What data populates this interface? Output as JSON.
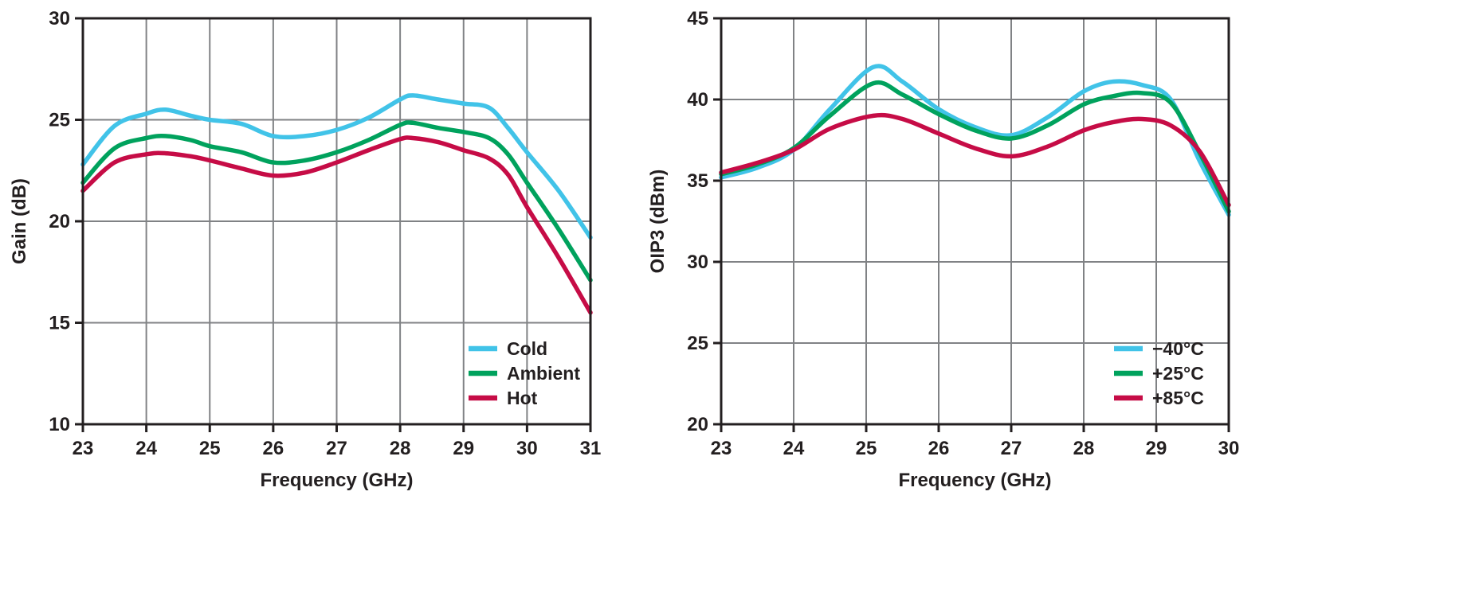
{
  "figure": {
    "background": "#FFFFFF"
  },
  "style_colors": {
    "axis_text": "#231F20",
    "frame": "#231F20",
    "grid": "#808285",
    "highlight_blue": "#0067B9"
  },
  "chart_data": [
    {
      "type": "line",
      "title": "",
      "xlabel": "Frequency (GHz)",
      "ylabel": "Gain (dB)",
      "xlim": [
        23,
        31
      ],
      "ylim": [
        10,
        30
      ],
      "xticks": [
        23,
        24,
        25,
        26,
        27,
        28,
        29,
        30,
        31
      ],
      "yticks": [
        10,
        15,
        20,
        25,
        30
      ],
      "grid": true,
      "legend_position": "bottom-right-inside",
      "x": [
        23,
        23.5,
        24,
        24.3,
        24.7,
        25,
        25.5,
        26,
        26.5,
        27,
        27.5,
        28,
        28.2,
        28.6,
        29,
        29.4,
        29.7,
        30,
        30.5,
        31
      ],
      "series": [
        {
          "name": "Cold",
          "color": "#41C3E8",
          "values": [
            22.8,
            24.7,
            25.3,
            25.5,
            25.2,
            25.0,
            24.8,
            24.2,
            24.2,
            24.5,
            25.1,
            26.0,
            26.2,
            26.0,
            25.8,
            25.6,
            24.6,
            23.4,
            21.5,
            19.2
          ]
        },
        {
          "name": "Ambient",
          "color": "#00A25D",
          "values": [
            21.9,
            23.6,
            24.1,
            24.2,
            24.0,
            23.7,
            23.4,
            22.9,
            23.0,
            23.4,
            24.0,
            24.75,
            24.85,
            24.6,
            24.4,
            24.1,
            23.3,
            21.9,
            19.6,
            17.1
          ]
        },
        {
          "name": "Hot",
          "color": "#C60C46",
          "values": [
            21.5,
            22.9,
            23.3,
            23.35,
            23.2,
            23.0,
            22.6,
            22.25,
            22.4,
            22.9,
            23.5,
            24.05,
            24.1,
            23.9,
            23.5,
            23.1,
            22.3,
            20.7,
            18.2,
            15.5
          ]
        }
      ]
    },
    {
      "type": "line",
      "title": "",
      "xlabel": "Frequency (GHz)",
      "ylabel": "OIP3 (dBm)",
      "xlim": [
        23,
        30
      ],
      "ylim": [
        20,
        45
      ],
      "xticks": [
        23,
        24,
        25,
        26,
        27,
        28,
        29,
        30
      ],
      "yticks": [
        20,
        25,
        30,
        35,
        40,
        45
      ],
      "xtick_colors": {
        "30": "#0067B9"
      },
      "grid": true,
      "legend_position": "bottom-right-inside",
      "x": [
        23,
        23.5,
        24,
        24.5,
        25.1,
        25.5,
        26,
        26.5,
        27,
        27.5,
        28,
        28.4,
        28.8,
        29.2,
        29.6,
        30
      ],
      "series": [
        {
          "name": "−40°C",
          "color": "#41C3E8",
          "values": [
            35.2,
            35.8,
            36.9,
            39.4,
            42.0,
            41.1,
            39.4,
            38.3,
            37.8,
            38.9,
            40.5,
            41.1,
            40.9,
            40.0,
            36.2,
            32.9
          ]
        },
        {
          "name": "+25°C",
          "color": "#00A25D",
          "values": [
            35.4,
            36.0,
            37.0,
            39.0,
            41.0,
            40.3,
            39.1,
            38.1,
            37.6,
            38.4,
            39.7,
            40.2,
            40.4,
            39.8,
            36.7,
            33.1
          ]
        },
        {
          "name": "+85°C",
          "color": "#C60C46",
          "values": [
            35.5,
            36.1,
            36.9,
            38.2,
            39.0,
            38.8,
            37.9,
            37.0,
            36.5,
            37.1,
            38.1,
            38.6,
            38.8,
            38.4,
            36.8,
            33.5
          ]
        }
      ]
    }
  ]
}
